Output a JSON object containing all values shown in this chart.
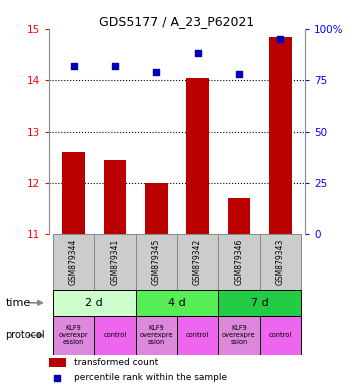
{
  "title": "GDS5177 / A_23_P62021",
  "samples": [
    "GSM879344",
    "GSM879341",
    "GSM879345",
    "GSM879342",
    "GSM879346",
    "GSM879343"
  ],
  "transformed_counts": [
    12.6,
    12.45,
    12.0,
    14.05,
    11.7,
    14.85
  ],
  "percentile_ranks": [
    82,
    82,
    79,
    88,
    78,
    95
  ],
  "ylim_left": [
    11,
    15
  ],
  "ylim_right": [
    0,
    100
  ],
  "yticks_left": [
    11,
    12,
    13,
    14,
    15
  ],
  "yticks_right": [
    0,
    25,
    50,
    75,
    100
  ],
  "bar_color": "#bb0000",
  "dot_color": "#0000bb",
  "background_color": "#ffffff",
  "time_groups": [
    {
      "label": "2 d",
      "start": 0,
      "end": 2,
      "color": "#ccffcc"
    },
    {
      "label": "4 d",
      "start": 2,
      "end": 4,
      "color": "#55ee55"
    },
    {
      "label": "7 d",
      "start": 4,
      "end": 6,
      "color": "#22cc44"
    }
  ],
  "protocol_items": [
    {
      "label": "KLF9\noverexpr\nession",
      "color": "#dd88dd"
    },
    {
      "label": "control",
      "color": "#ee66ee"
    },
    {
      "label": "KLF9\noverexpre\nssion",
      "color": "#dd88dd"
    },
    {
      "label": "control",
      "color": "#ee66ee"
    },
    {
      "label": "KLF9\noverexpre\nssion",
      "color": "#dd88dd"
    },
    {
      "label": "control",
      "color": "#ee66ee"
    }
  ],
  "legend_bar_label": "transformed count",
  "legend_dot_label": "percentile rank within the sample",
  "sample_box_color": "#cccccc",
  "sample_box_edge": "#888888"
}
